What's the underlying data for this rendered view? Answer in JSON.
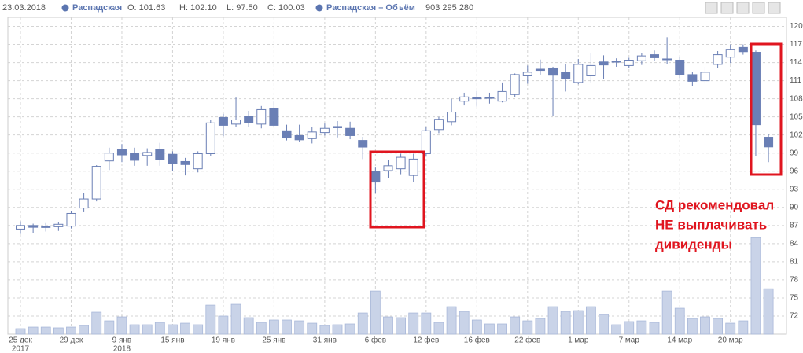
{
  "chart_data": {
    "type": "candlestick",
    "header": {
      "date": "23.03.2018",
      "ohlc": [
        "O: 101.63",
        "H: 102.10",
        "L: 97.50",
        "C: 100.03"
      ],
      "volume_text": "903 295 280"
    },
    "x": [
      "2017-12-25",
      "2017-12-26",
      "2017-12-27",
      "2017-12-28",
      "2017-12-29",
      "2018-01-03",
      "2018-01-04",
      "2018-01-05",
      "2018-01-09",
      "2018-01-10",
      "2018-01-11",
      "2018-01-12",
      "2018-01-15",
      "2018-01-16",
      "2018-01-17",
      "2018-01-18",
      "2018-01-19",
      "2018-01-22",
      "2018-01-23",
      "2018-01-24",
      "2018-01-25",
      "2018-01-26",
      "2018-01-29",
      "2018-01-30",
      "2018-01-31",
      "2018-02-01",
      "2018-02-02",
      "2018-02-05",
      "2018-02-06",
      "2018-02-07",
      "2018-02-08",
      "2018-02-09",
      "2018-02-12",
      "2018-02-13",
      "2018-02-14",
      "2018-02-15",
      "2018-02-16",
      "2018-02-19",
      "2018-02-20",
      "2018-02-21",
      "2018-02-22",
      "2018-02-26",
      "2018-02-27",
      "2018-02-28",
      "2018-03-01",
      "2018-03-02",
      "2018-03-05",
      "2018-03-06",
      "2018-03-07",
      "2018-03-09",
      "2018-03-12",
      "2018-03-13",
      "2018-03-14",
      "2018-03-15",
      "2018-03-16",
      "2018-03-19",
      "2018-03-20",
      "2018-03-21",
      "2018-03-22",
      "2018-03-23"
    ],
    "series": [
      {
        "name": "Распадская",
        "color": "#6a7fb5",
        "open": [
          86.4,
          87.0,
          86.7,
          86.8,
          86.9,
          89.9,
          91.4,
          97.7,
          99.6,
          99.0,
          98.6,
          99.6,
          98.8,
          97.6,
          96.4,
          98.9,
          104.9,
          103.8,
          105.1,
          103.8,
          106.4,
          102.7,
          101.9,
          101.4,
          102.4,
          103.4,
          103.1,
          101.1,
          96.0,
          96.1,
          96.4,
          95.3,
          98.9,
          102.9,
          104.2,
          107.6,
          108.2,
          108.2,
          107.6,
          108.7,
          111.8,
          112.9,
          113.1,
          112.4,
          110.7,
          111.8,
          114.1,
          114.2,
          113.5,
          114.3,
          115.3,
          114.6,
          114.4,
          112.0,
          111.0,
          113.7,
          114.9,
          116.5,
          115.7,
          101.63
        ],
        "high": [
          87.7,
          87.3,
          87.4,
          87.6,
          89.4,
          92.4,
          97.0,
          99.9,
          100.5,
          99.9,
          99.8,
          100.7,
          99.3,
          98.2,
          99.3,
          104.5,
          105.5,
          108.2,
          106.0,
          106.8,
          107.6,
          103.7,
          103.7,
          103.3,
          103.9,
          104.3,
          104.2,
          101.7,
          96.6,
          97.8,
          98.9,
          98.9,
          103.4,
          105.0,
          108.0,
          109.0,
          109.3,
          109.0,
          110.7,
          112.2,
          113.5,
          114.5,
          113.3,
          113.8,
          114.6,
          115.6,
          115.2,
          114.7,
          114.8,
          115.6,
          116.0,
          118.2,
          115.0,
          112.4,
          113.3,
          115.9,
          117.0,
          117.0,
          116.0,
          102.1
        ],
        "low": [
          85.6,
          85.8,
          86.0,
          86.1,
          86.5,
          89.2,
          91.0,
          96.2,
          97.5,
          96.9,
          96.9,
          96.9,
          96.1,
          95.3,
          95.8,
          98.5,
          101.8,
          103.3,
          103.3,
          103.1,
          103.3,
          101.1,
          100.9,
          100.6,
          101.9,
          101.6,
          101.3,
          98.0,
          92.3,
          94.9,
          95.5,
          94.2,
          98.4,
          102.3,
          103.6,
          106.9,
          106.7,
          107.2,
          107.4,
          108.3,
          110.5,
          112.0,
          105.1,
          109.2,
          110.4,
          110.7,
          111.3,
          113.3,
          113.1,
          113.6,
          114.2,
          113.8,
          111.4,
          110.1,
          110.5,
          113.1,
          113.9,
          115.3,
          98.5,
          97.5
        ],
        "close": [
          87.0,
          86.7,
          86.8,
          87.2,
          89.0,
          91.4,
          96.8,
          99.0,
          98.7,
          97.8,
          99.1,
          97.9,
          97.3,
          97.1,
          98.9,
          104.0,
          103.6,
          104.5,
          104.0,
          106.2,
          103.6,
          101.5,
          101.2,
          102.5,
          103.1,
          103.2,
          101.9,
          100.0,
          94.2,
          96.9,
          98.3,
          98.0,
          102.7,
          104.6,
          105.8,
          108.3,
          108.0,
          108.1,
          109.2,
          112.0,
          112.4,
          112.7,
          111.9,
          111.4,
          113.7,
          113.5,
          113.6,
          114.1,
          114.4,
          115.1,
          114.8,
          114.5,
          112.0,
          110.9,
          112.4,
          115.3,
          116.2,
          115.8,
          103.7,
          100.03
        ]
      },
      {
        "name": "Распадская – Объём",
        "color": "#c9d3e8",
        "axis": "y2",
        "values": [
          109000000,
          140000000,
          140000000,
          125000000,
          140000000,
          172000000,
          437000000,
          265000000,
          343000000,
          187000000,
          187000000,
          234000000,
          187000000,
          218000000,
          187000000,
          577000000,
          359000000,
          593000000,
          328000000,
          234000000,
          281000000,
          281000000,
          265000000,
          218000000,
          172000000,
          187000000,
          203000000,
          421000000,
          858000000,
          343000000,
          328000000,
          421000000,
          421000000,
          234000000,
          546000000,
          452000000,
          281000000,
          203000000,
          203000000,
          343000000,
          265000000,
          312000000,
          546000000,
          452000000,
          468000000,
          546000000,
          390000000,
          187000000,
          250000000,
          265000000,
          234000000,
          858000000,
          515000000,
          312000000,
          343000000,
          312000000,
          218000000,
          265000000,
          1919000000,
          903295280
        ]
      }
    ],
    "xticks": [
      {
        "value": "2017-12-25",
        "label": "25 дек"
      },
      {
        "value": "2017-12-29",
        "label": "29 дек"
      },
      {
        "value": "2018-01-09",
        "label": "9 янв"
      },
      {
        "value": "2018-01-15",
        "label": "15 янв"
      },
      {
        "value": "2018-01-19",
        "label": "19 янв"
      },
      {
        "value": "2018-01-25",
        "label": "25 янв"
      },
      {
        "value": "2018-01-31",
        "label": "31 янв"
      },
      {
        "value": "2018-02-06",
        "label": "6 фев"
      },
      {
        "value": "2018-02-12",
        "label": "12 фев"
      },
      {
        "value": "2018-02-16",
        "label": "16 фев"
      },
      {
        "value": "2018-02-22",
        "label": "22 фев"
      },
      {
        "value": "2018-03-01",
        "label": "1 мар"
      },
      {
        "value": "2018-03-07",
        "label": "7 мар"
      },
      {
        "value": "2018-03-14",
        "label": "14 мар"
      },
      {
        "value": "2018-03-20",
        "label": "20 мар"
      }
    ],
    "xtick_years": [
      {
        "value": "2017-12-25",
        "label": "2017"
      },
      {
        "value": "2018-01-09",
        "label": "2018"
      }
    ],
    "ylim": [
      69,
      121.5
    ],
    "yticks": [
      72,
      75,
      78,
      81,
      84,
      87,
      90,
      93,
      96,
      99,
      102,
      105,
      108,
      111,
      114,
      117,
      120
    ],
    "y2lim": [
      0,
      6300000000
    ],
    "grid": true,
    "annotation": [
      "СД рекомендовал",
      "НЕ выплачивать",
      "дивиденды"
    ]
  }
}
